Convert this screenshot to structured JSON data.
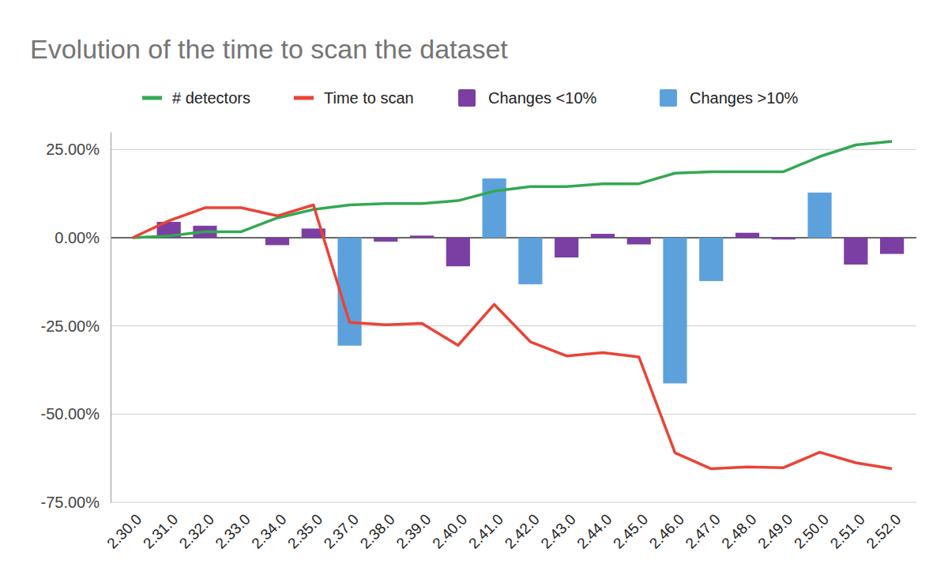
{
  "chart_data": {
    "type": "bar",
    "title": "Evolution of the time to scan the dataset",
    "categories": [
      "2.30.0",
      "2.31.0",
      "2.32.0",
      "2.33.0",
      "2.34.0",
      "2.35.0",
      "2.37.0",
      "2.38.0",
      "2.39.0",
      "2.40.0",
      "2.41.0",
      "2.42.0",
      "2.43.0",
      "2.44.0",
      "2.45.0",
      "2.46.0",
      "2.47.0",
      "2.48.0",
      "2.49.0",
      "2.50.0",
      "2.51.0",
      "2.52.0"
    ],
    "series": [
      {
        "name": "# detectors",
        "type": "line",
        "color": "#34a853",
        "values": [
          0,
          0.5,
          1.7,
          1.7,
          5.6,
          8,
          9.3,
          9.7,
          9.7,
          10.5,
          13.2,
          14.5,
          14.5,
          15.3,
          15.3,
          18.3,
          18.7,
          18.7,
          18.7,
          23,
          26.3,
          27.3
        ]
      },
      {
        "name": "Time to scan",
        "type": "line",
        "color": "#ea4335",
        "values": [
          0,
          4.8,
          8.5,
          8.5,
          6.2,
          9.3,
          -24,
          -24.7,
          -24.3,
          -30.5,
          -18.9,
          -29.5,
          -33.5,
          -32.6,
          -33.8,
          -61,
          -65.5,
          -65,
          -65.2,
          -60.8,
          -63.8,
          -65.5
        ]
      },
      {
        "name": "Changes <10%",
        "type": "bar",
        "color": "#7b3ea3",
        "values": [
          null,
          4.5,
          3.4,
          0,
          -2.1,
          2.6,
          null,
          -1.1,
          0.6,
          -8.1,
          null,
          null,
          -5.6,
          1.1,
          -1.9,
          null,
          null,
          1.4,
          -0.5,
          null,
          -7.6,
          -4.6
        ]
      },
      {
        "name": "Changes >10%",
        "type": "bar",
        "color": "#5da1dc",
        "values": [
          null,
          null,
          null,
          null,
          null,
          null,
          -30.6,
          null,
          null,
          null,
          16.8,
          -13.2,
          null,
          null,
          null,
          -41.3,
          -12.3,
          null,
          null,
          12.8,
          null,
          null
        ]
      }
    ],
    "ylim": [
      -75,
      30
    ],
    "yticks": [
      {
        "value": -75,
        "label": "-75.00%"
      },
      {
        "value": -50,
        "label": "-50.00%"
      },
      {
        "value": -25,
        "label": "-25.00%"
      },
      {
        "value": 0,
        "label": "0.00%"
      },
      {
        "value": 25,
        "label": "25.00%"
      }
    ],
    "grid": true,
    "legend": "top"
  }
}
